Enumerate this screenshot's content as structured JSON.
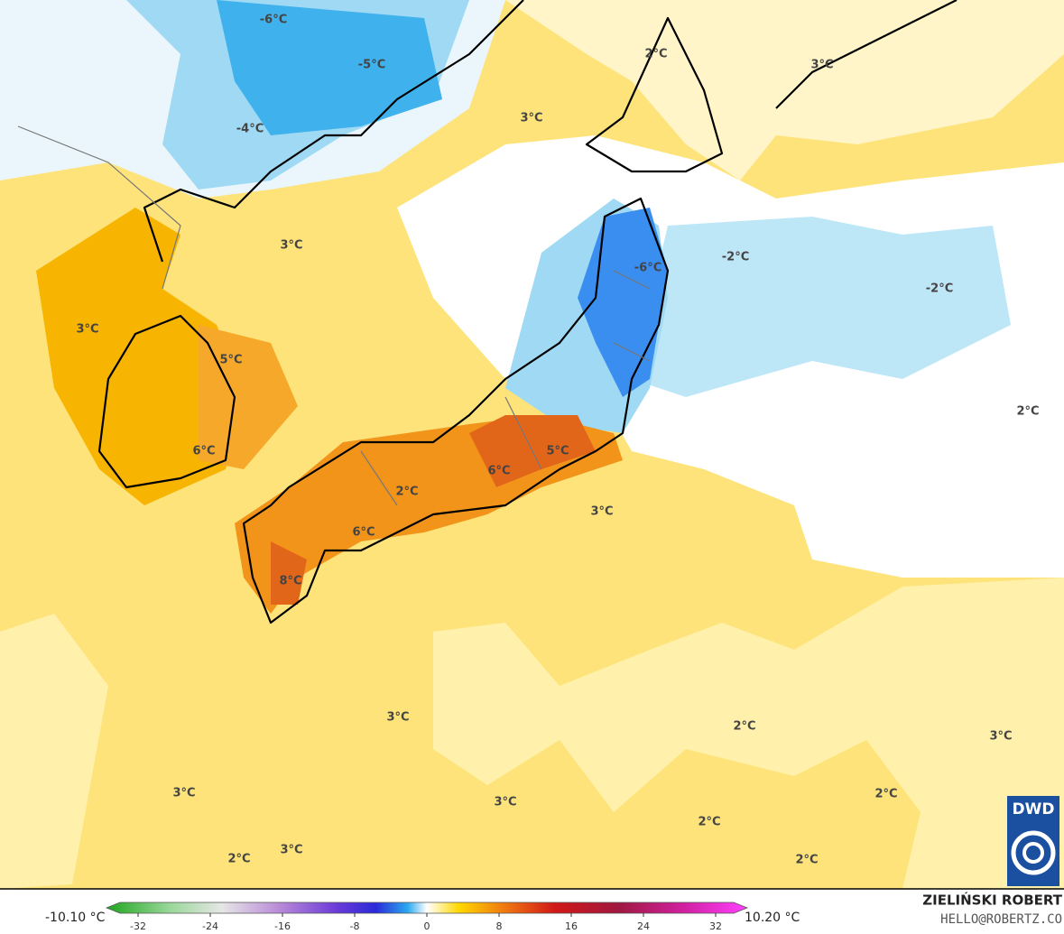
{
  "map": {
    "labels": [
      "-6°C",
      "-5°C",
      "-4°C",
      "2°C",
      "3°C",
      "3°C",
      "3°C",
      "-6°C",
      "-2°C",
      "-2°C",
      "3°C",
      "5°C",
      "6°C",
      "5°C",
      "6°C",
      "2°C",
      "3°C",
      "6°C",
      "8°C",
      "2°C",
      "3°C",
      "2°C",
      "3°C",
      "3°C",
      "3°C",
      "2°C",
      "2°C",
      "2°C",
      "3°C",
      "2°C"
    ]
  },
  "colorbar": {
    "min_label": "-10.10 °C",
    "max_label": "10.20 °C",
    "ticks": [
      -32,
      -24,
      -16,
      -8,
      0,
      8,
      16,
      24,
      32
    ]
  },
  "credits": {
    "author": "ZIELIŃSKI ROBERT",
    "contact": "HELLO@ROBERTZ.CO",
    "logo": "DWD"
  }
}
